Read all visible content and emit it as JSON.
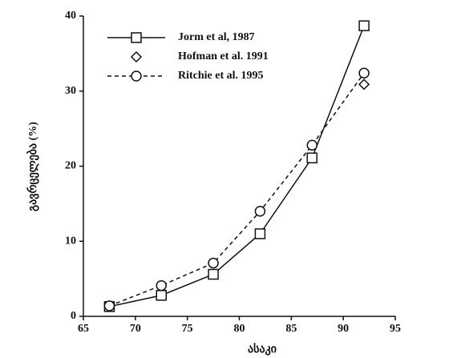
{
  "chart_data": {
    "type": "line",
    "xlabel": "ასაკი",
    "ylabel": "გავრცელება (%)",
    "xlim": [
      65,
      95
    ],
    "xticks": [
      65,
      70,
      75,
      80,
      85,
      90,
      95
    ],
    "ylim": [
      0,
      40
    ],
    "yticks": [
      0,
      10,
      20,
      30,
      40
    ],
    "legend": "top-left",
    "series": [
      {
        "name": "Jorm et al, 1987",
        "color": "#111111",
        "marker": "square",
        "line": "solid",
        "x": [
          67.5,
          72.5,
          77.5,
          82,
          87,
          92
        ],
        "values": [
          1.3,
          2.8,
          5.6,
          11,
          21.1,
          38.7
        ]
      },
      {
        "name": "Hofman et al. 1991",
        "color": "#111111",
        "marker": "diamond",
        "line": "none",
        "x": [
          92
        ],
        "values": [
          30.9
        ]
      },
      {
        "name": "Ritchie et al. 1995",
        "color": "#111111",
        "marker": "circle",
        "line": "dashed",
        "x": [
          67.5,
          72.5,
          77.5,
          82,
          87,
          92
        ],
        "values": [
          1.4,
          4.1,
          7.1,
          14,
          22.8,
          32.4
        ]
      }
    ]
  }
}
